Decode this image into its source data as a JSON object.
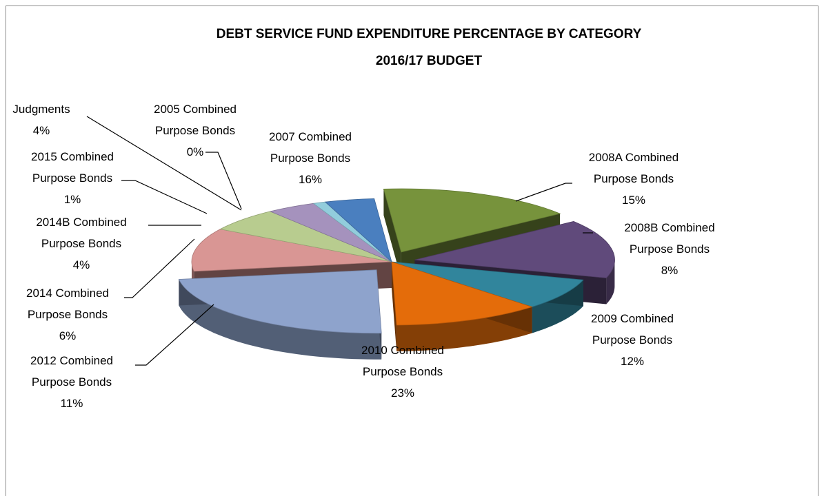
{
  "chart_data": {
    "type": "pie",
    "title": "DEBT SERVICE FUND EXPENDITURE PERCENTAGE  BY CATEGORY",
    "subtitle": "2016/17 BUDGET",
    "slices": [
      {
        "label": "2007 Combined Purpose Bonds",
        "value": 16,
        "display": "16%",
        "color": "#77933c",
        "exploded": true
      },
      {
        "label": "2008A Combined Purpose Bonds",
        "value": 15,
        "display": "15%",
        "color": "#604a7b",
        "exploded": true
      },
      {
        "label": "2008B Combined Purpose Bonds",
        "value": 8,
        "display": "8%",
        "color": "#31859c",
        "exploded": false
      },
      {
        "label": "2009 Combined Purpose Bonds",
        "value": 12,
        "display": "12%",
        "color": "#e46c0a",
        "exploded": false
      },
      {
        "label": "2010 Combined Purpose Bonds",
        "value": 23,
        "display": "23%",
        "color": "#8ea3cc",
        "exploded": true
      },
      {
        "label": "2012 Combined Purpose Bonds",
        "value": 11,
        "display": "11%",
        "color": "#d99694",
        "exploded": false
      },
      {
        "label": "2014 Combined Purpose Bonds",
        "value": 6,
        "display": "6%",
        "color": "#b8cc8f",
        "exploded": false
      },
      {
        "label": "2014B Combined Purpose Bonds",
        "value": 4,
        "display": "4%",
        "color": "#a592bd",
        "exploded": false
      },
      {
        "label": "2015 Combined Purpose Bonds",
        "value": 1,
        "display": "1%",
        "color": "#92cddc",
        "exploded": false
      },
      {
        "label": "Judgments",
        "value": 4,
        "display": "4%",
        "color": "#4a7fbf",
        "exploded": false
      },
      {
        "label": "2005 Combined Purpose Bonds",
        "value": 0,
        "display": "0%",
        "color": "#9bbb59",
        "exploded": false
      }
    ],
    "labels": [
      {
        "lines": [
          "Judgments",
          "4%"
        ]
      },
      {
        "lines": [
          "2005 Combined",
          "Purpose Bonds",
          "0%"
        ]
      },
      {
        "lines": [
          "2007 Combined",
          "Purpose Bonds",
          "16%"
        ]
      },
      {
        "lines": [
          "2008A Combined",
          "Purpose Bonds",
          "15%"
        ]
      },
      {
        "lines": [
          "2008B Combined",
          "Purpose Bonds",
          "8%"
        ]
      },
      {
        "lines": [
          "2009 Combined",
          "Purpose Bonds",
          "12%"
        ]
      },
      {
        "lines": [
          "2010 Combined",
          "Purpose Bonds",
          "23%"
        ]
      },
      {
        "lines": [
          "2012 Combined",
          "Purpose Bonds",
          "11%"
        ]
      },
      {
        "lines": [
          "2014 Combined",
          "Purpose Bonds",
          "6%"
        ]
      },
      {
        "lines": [
          "2014B Combined",
          "Purpose Bonds",
          "4%"
        ]
      },
      {
        "lines": [
          "2015 Combined",
          "Purpose Bonds",
          "1%"
        ]
      }
    ]
  }
}
